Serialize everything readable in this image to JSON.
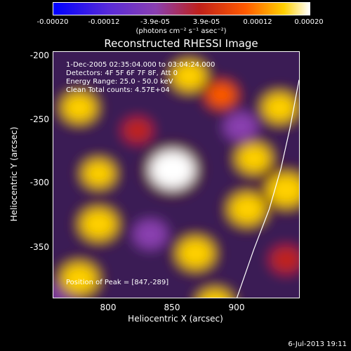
{
  "chart_data": {
    "type": "heatmap",
    "title": "Reconstructed RHESSI Image",
    "xlabel": "Heliocentric X (arcsec)",
    "ylabel": "Heliocentric Y (arcsec)",
    "xlim": [
      755,
      945
    ],
    "ylim": [
      -390,
      -196
    ],
    "x_ticks": [
      "800",
      "850",
      "900"
    ],
    "y_ticks": [
      "-200",
      "-250",
      "-300",
      "-350"
    ],
    "colorbar": {
      "ticks": [
        "-0.00020",
        "-0.00012",
        "-3.9e-05",
        "3.9e-05",
        "0.00012",
        "0.00020"
      ],
      "range": [
        -0.0002,
        0.0002
      ],
      "unit_text": "(photons cm⁻² s⁻¹ asec⁻²)",
      "colors": [
        "#0000ff",
        "#8a3fb0",
        "#c0201a",
        "#ff5a00",
        "#ffd000",
        "#ffffff"
      ]
    },
    "annotations": {
      "time_range": "1-Dec-2005 02:35:04.000 to 03:04:24.000",
      "detectors": "Detectors: 4F 5F 6F 7F 8F, Att 0",
      "energy": "Energy Range: 25.0 - 50.0 keV",
      "clean": "Clean    Total counts: 4.57E+04",
      "peak": "Position of Peak = [847,-289]"
    },
    "peak": {
      "x": 847,
      "y": -289
    },
    "blobs": [
      {
        "x": 847,
        "y": -289,
        "v": 0.0002
      },
      {
        "x": 775,
        "y": -240,
        "v": 0.0001
      },
      {
        "x": 860,
        "y": -215,
        "v": 0.0001
      },
      {
        "x": 885,
        "y": -230,
        "v": 6e-05
      },
      {
        "x": 930,
        "y": -240,
        "v": 0.0001
      },
      {
        "x": 790,
        "y": -292,
        "v": 8e-05
      },
      {
        "x": 910,
        "y": -280,
        "v": 0.0001
      },
      {
        "x": 935,
        "y": -305,
        "v": 0.00014
      },
      {
        "x": 905,
        "y": -320,
        "v": 0.00012
      },
      {
        "x": 790,
        "y": -332,
        "v": 0.00012
      },
      {
        "x": 865,
        "y": -355,
        "v": 0.00012
      },
      {
        "x": 775,
        "y": -375,
        "v": 0.00012
      },
      {
        "x": 880,
        "y": -395,
        "v": 0.0001
      },
      {
        "x": 820,
        "y": -258,
        "v": -6e-05
      },
      {
        "x": 900,
        "y": -255,
        "v": -0.0001
      },
      {
        "x": 830,
        "y": -340,
        "v": -0.0001
      },
      {
        "x": 765,
        "y": -385,
        "v": -0.00012
      },
      {
        "x": 935,
        "y": -360,
        "v": -8e-05
      }
    ],
    "limb_curve": [
      [
        897,
        -390
      ],
      [
        910,
        -352
      ],
      [
        922,
        -320
      ],
      [
        931,
        -288
      ],
      [
        938,
        -256
      ],
      [
        945,
        -218
      ]
    ]
  },
  "timestamp": "6-Jul-2013 19:11"
}
